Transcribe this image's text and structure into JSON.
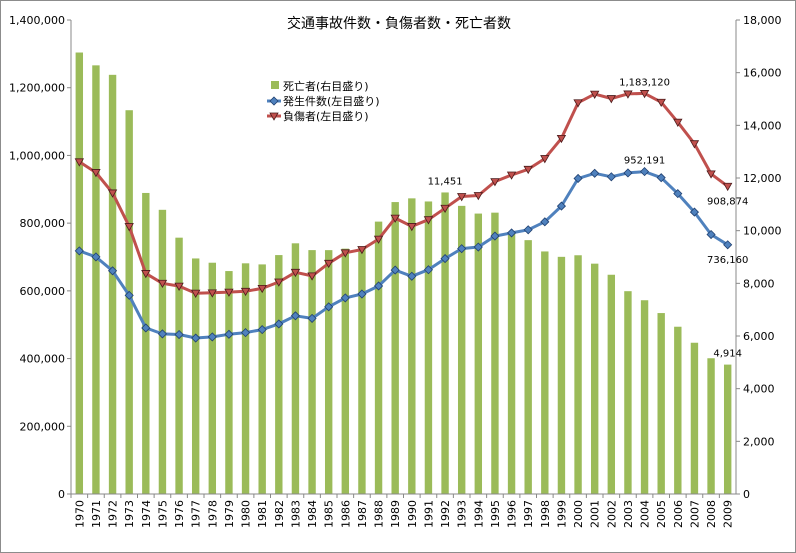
{
  "chart_data": {
    "type": "bar+line",
    "title": "交通事故件数・負傷者数・死亡者数",
    "categories": [
      "1970",
      "1971",
      "1972",
      "1973",
      "1974",
      "1975",
      "1976",
      "1977",
      "1978",
      "1979",
      "1980",
      "1981",
      "1982",
      "1983",
      "1984",
      "1985",
      "1986",
      "1987",
      "1988",
      "1989",
      "1990",
      "1991",
      "1992",
      "1993",
      "1994",
      "1995",
      "1996",
      "1997",
      "1998",
      "1999",
      "2000",
      "2001",
      "2002",
      "2003",
      "2004",
      "2005",
      "2006",
      "2007",
      "2008",
      "2009"
    ],
    "left_axis": {
      "ylim": [
        0,
        1400000
      ],
      "ticks": [
        "0",
        "200,000",
        "400,000",
        "600,000",
        "800,000",
        "1,000,000",
        "1,200,000",
        "1,400,000"
      ]
    },
    "right_axis": {
      "ylim": [
        0,
        18000
      ],
      "ticks": [
        "0",
        "2,000",
        "4,000",
        "6,000",
        "8,000",
        "10,000",
        "12,000",
        "14,000",
        "16,000",
        "18,000"
      ]
    },
    "grid": false,
    "legend": "top-center",
    "series": [
      {
        "name": "死亡者(右目盛り)",
        "type": "bar",
        "axis": "right",
        "color": "#9bbb59",
        "values": [
          16765,
          16278,
          15918,
          14574,
          11432,
          10792,
          9734,
          8945,
          8783,
          8466,
          8760,
          8719,
          9073,
          9520,
          9262,
          9261,
          9317,
          9347,
          10344,
          11086,
          11227,
          11109,
          11451,
          10942,
          10649,
          10684,
          9942,
          9640,
          9211,
          9006,
          9066,
          8747,
          8326,
          7702,
          7358,
          6871,
          6352,
          5744,
          5155,
          4914
        ]
      },
      {
        "name": "発生件数(左目盛り)",
        "type": "line",
        "axis": "left",
        "color": "#4f81bd",
        "marker": "diamond",
        "values": [
          718080,
          700290,
          659283,
          586713,
          490452,
          472938,
          471041,
          460649,
          464037,
          471573,
          476677,
          485578,
          502261,
          526362,
          518642,
          552788,
          579190,
          590723,
          614481,
          661363,
          643097,
          662392,
          695345,
          724678,
          729461,
          761794,
          771085,
          780401,
          803882,
          850371,
          931950,
          947253,
          936950,
          948281,
          952191,
          934346,
          887267,
          832704,
          766394,
          736160
        ]
      },
      {
        "name": "負傷者(左目盛り)",
        "type": "line",
        "axis": "left",
        "color": "#c0504d",
        "marker": "triangle-down",
        "values": [
          981096,
          949689,
          889198,
          789948,
          651420,
          622467,
          613957,
          593211,
          594116,
          596282,
          598719,
          607346,
          626192,
          654822,
          644321,
          681346,
          712330,
          722179,
          752845,
          814832,
          790295,
          810245,
          844003,
          878633,
          881723,
          922677,
          942204,
          958925,
          990675,
          1050399,
          1155697,
          1181039,
          1168029,
          1181681,
          1183120,
          1157113,
          1098199,
          1034652,
          945504,
          908874
        ]
      }
    ],
    "annotations": [
      {
        "text": "11,451",
        "series": 0,
        "category": "1992",
        "position": "above"
      },
      {
        "text": "4,914",
        "series": 0,
        "category": "2009",
        "position": "above"
      },
      {
        "text": "952,191",
        "series": 1,
        "category": "2004",
        "position": "above"
      },
      {
        "text": "736,160",
        "series": 1,
        "category": "2009",
        "position": "below"
      },
      {
        "text": "1,183,120",
        "series": 2,
        "category": "2004",
        "position": "above"
      },
      {
        "text": "908,874",
        "series": 2,
        "category": "2009",
        "position": "below"
      }
    ]
  }
}
